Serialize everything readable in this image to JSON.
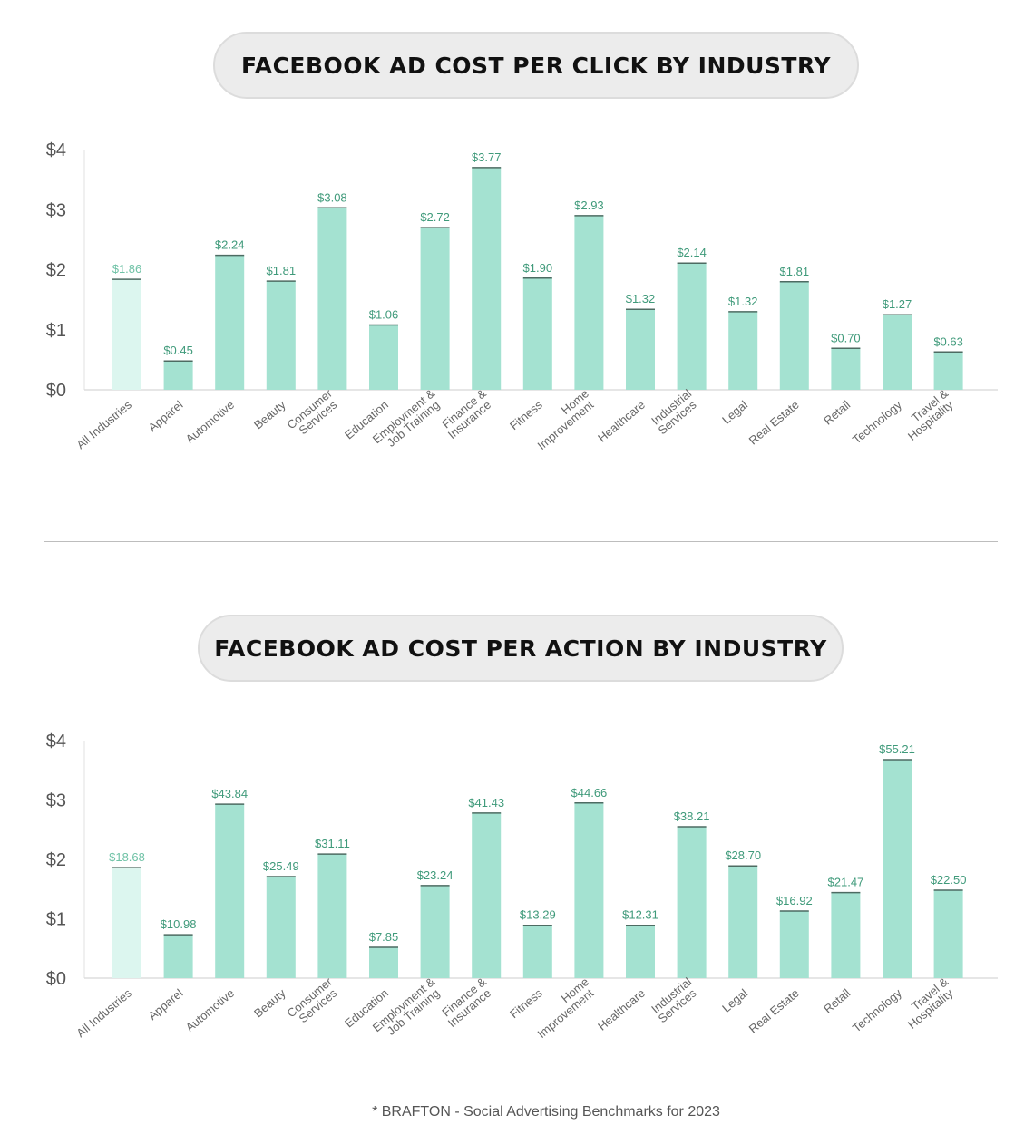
{
  "colors": {
    "bar": "#a4e2d1",
    "bar_highlight": "#dcf6ef",
    "bar_top": "#4d6b62",
    "label": "#3f9a7a",
    "label_highlight": "#6fc2a6",
    "axis_text": "#555555"
  },
  "chart_data": [
    {
      "type": "bar",
      "title": "FACEBOOK AD COST PER CLICK BY INDUSTRY",
      "ylim": [
        0,
        4
      ],
      "yticks": [
        "$0",
        "$1",
        "$2",
        "$3",
        "$4"
      ],
      "categories": [
        "All Industries",
        "Apparel",
        "Automotive",
        "Beauty",
        "Consumer\nServices",
        "Education",
        "Employment &\nJob Training",
        "Finance &\nInsurance",
        "Fitness",
        "Home\nImprovement",
        "Healthcare",
        "Industrial\nServices",
        "Legal",
        "Real Estate",
        "Retail",
        "Technology",
        "Travel &\nHospitality"
      ],
      "values": [
        1.86,
        0.45,
        2.24,
        1.81,
        3.08,
        1.06,
        2.72,
        3.77,
        1.9,
        2.93,
        1.32,
        2.14,
        1.32,
        1.81,
        0.7,
        1.27,
        0.63
      ],
      "plotted_levels": [
        1.84,
        0.48,
        2.24,
        1.81,
        3.03,
        1.08,
        2.7,
        3.7,
        1.86,
        2.9,
        1.34,
        2.11,
        1.3,
        1.8,
        0.69,
        1.25,
        0.63
      ],
      "data_labels": [
        "$1.86",
        "$0.45",
        "$2.24",
        "$1.81",
        "$3.08",
        "$1.06",
        "$2.72",
        "$3.77",
        "$1.90",
        "$2.93",
        "$1.32",
        "$2.14",
        "$1.32",
        "$1.81",
        "$0.70",
        "$1.27",
        "$0.63"
      ],
      "highlight_index": 0
    },
    {
      "type": "bar",
      "title": "FACEBOOK AD COST PER ACTION BY INDUSTRY",
      "ylim": [
        0,
        4
      ],
      "yticks": [
        "$0",
        "$1",
        "$2",
        "$3",
        "$4"
      ],
      "categories": [
        "All Industries",
        "Apparel",
        "Automotive",
        "Beauty",
        "Consumer\nServices",
        "Education",
        "Employment &\nJob Training",
        "Finance &\nInsurance",
        "Fitness",
        "Home\nImprovement",
        "Healthcare",
        "Industrial\nServices",
        "Legal",
        "Real Estate",
        "Retail",
        "Technology",
        "Travel &\nHospitality"
      ],
      "values": [
        18.68,
        10.98,
        43.84,
        25.49,
        31.11,
        7.85,
        23.24,
        41.43,
        13.29,
        44.66,
        12.31,
        38.21,
        28.7,
        16.92,
        21.47,
        55.21,
        22.5
      ],
      "plotted_levels": [
        1.86,
        0.73,
        2.93,
        1.71,
        2.09,
        0.52,
        1.56,
        2.78,
        0.89,
        2.95,
        0.89,
        2.55,
        1.89,
        1.13,
        1.44,
        3.68,
        1.48
      ],
      "data_labels": [
        "$18.68",
        "$10.98",
        "$43.84",
        "$25.49",
        "$31.11",
        "$7.85",
        "$23.24",
        "$41.43",
        "$13.29",
        "$44.66",
        "$12.31",
        "$38.21",
        "$28.70",
        "$16.92",
        "$21.47",
        "$55.21",
        "$22.50"
      ],
      "highlight_index": 0
    }
  ],
  "footer": "* BRAFTON - Social Advertising Benchmarks for 2023"
}
